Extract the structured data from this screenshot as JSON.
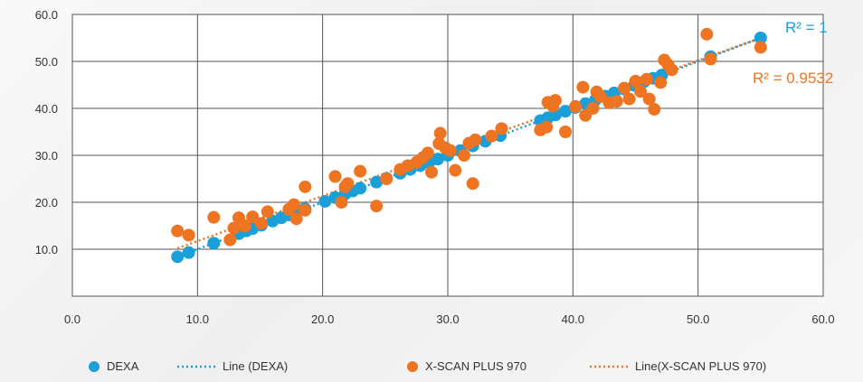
{
  "chart_data": {
    "type": "scatter",
    "title": "",
    "xlabel": "",
    "ylabel": "",
    "xlim": [
      0,
      60
    ],
    "ylim": [
      0,
      60
    ],
    "x_ticks": [
      "0.0",
      "10.0",
      "20.0",
      "30.0",
      "40.0",
      "50.0",
      "60.0"
    ],
    "y_ticks": [
      "10.0",
      "20.0",
      "30.0",
      "40.0",
      "50.0",
      "60.0"
    ],
    "grid": true,
    "legend_position": "bottom",
    "series": [
      {
        "name": "DEXA",
        "color": "#1a9fd9",
        "points": [
          [
            8.4,
            8.4
          ],
          [
            9.3,
            9.3
          ],
          [
            11.3,
            11.3
          ],
          [
            13.3,
            13.3
          ],
          [
            13.9,
            13.9
          ],
          [
            14.4,
            14.4
          ],
          [
            15.1,
            15.1
          ],
          [
            16.0,
            16.0
          ],
          [
            16.7,
            16.7
          ],
          [
            17.3,
            17.3
          ],
          [
            18.0,
            18.0
          ],
          [
            18.6,
            18.6
          ],
          [
            20.2,
            20.2
          ],
          [
            21.0,
            21.0
          ],
          [
            21.8,
            21.8
          ],
          [
            22.4,
            22.4
          ],
          [
            23.0,
            23.0
          ],
          [
            24.3,
            24.3
          ],
          [
            25.1,
            25.1
          ],
          [
            26.2,
            26.2
          ],
          [
            27.0,
            27.0
          ],
          [
            27.8,
            27.8
          ],
          [
            28.5,
            28.5
          ],
          [
            29.2,
            29.2
          ],
          [
            30.0,
            30.0
          ],
          [
            31.0,
            31.0
          ],
          [
            32.0,
            32.0
          ],
          [
            33.0,
            33.0
          ],
          [
            34.2,
            34.2
          ],
          [
            37.4,
            37.4
          ],
          [
            38.0,
            38.0
          ],
          [
            38.6,
            38.6
          ],
          [
            39.4,
            39.4
          ],
          [
            40.2,
            40.2
          ],
          [
            41.0,
            41.0
          ],
          [
            41.8,
            41.8
          ],
          [
            42.6,
            42.6
          ],
          [
            43.3,
            43.3
          ],
          [
            44.1,
            44.1
          ],
          [
            44.9,
            44.9
          ],
          [
            45.7,
            45.7
          ],
          [
            46.4,
            46.4
          ],
          [
            47.1,
            47.1
          ],
          [
            51.0,
            51.0
          ],
          [
            55.0,
            55.0
          ]
        ]
      },
      {
        "name": "X-SCAN PLUS 970",
        "color": "#ee7421",
        "points": [
          [
            8.4,
            13.9
          ],
          [
            9.3,
            13.0
          ],
          [
            11.3,
            16.8
          ],
          [
            12.6,
            12.0
          ],
          [
            12.9,
            14.5
          ],
          [
            13.3,
            16.7
          ],
          [
            13.8,
            15.0
          ],
          [
            14.4,
            16.9
          ],
          [
            15.1,
            15.5
          ],
          [
            15.6,
            18.0
          ],
          [
            17.3,
            18.5
          ],
          [
            17.7,
            19.5
          ],
          [
            17.9,
            16.5
          ],
          [
            18.6,
            18.3
          ],
          [
            18.6,
            23.3
          ],
          [
            21.0,
            25.5
          ],
          [
            21.5,
            20.0
          ],
          [
            21.8,
            23.3
          ],
          [
            22.0,
            24.0
          ],
          [
            23.0,
            26.6
          ],
          [
            24.3,
            19.2
          ],
          [
            25.1,
            25.0
          ],
          [
            26.2,
            27.0
          ],
          [
            26.8,
            27.8
          ],
          [
            27.5,
            28.5
          ],
          [
            28.0,
            29.5
          ],
          [
            28.4,
            30.5
          ],
          [
            28.7,
            26.4
          ],
          [
            29.3,
            32.5
          ],
          [
            29.4,
            34.7
          ],
          [
            29.8,
            31.6
          ],
          [
            30.2,
            31.0
          ],
          [
            30.6,
            26.8
          ],
          [
            31.3,
            30.0
          ],
          [
            31.7,
            32.6
          ],
          [
            32.0,
            24.0
          ],
          [
            32.2,
            33.3
          ],
          [
            33.5,
            34.1
          ],
          [
            34.3,
            35.7
          ],
          [
            37.4,
            35.4
          ],
          [
            37.9,
            36.0
          ],
          [
            38.0,
            41.3
          ],
          [
            38.4,
            40.5
          ],
          [
            38.6,
            41.7
          ],
          [
            39.4,
            35.0
          ],
          [
            40.2,
            40.4
          ],
          [
            40.8,
            44.5
          ],
          [
            41.0,
            38.5
          ],
          [
            41.6,
            40.0
          ],
          [
            41.9,
            43.5
          ],
          [
            42.2,
            42.5
          ],
          [
            42.9,
            41.2
          ],
          [
            43.5,
            41.5
          ],
          [
            44.1,
            44.3
          ],
          [
            44.5,
            42.0
          ],
          [
            45.0,
            45.8
          ],
          [
            45.4,
            43.6
          ],
          [
            45.9,
            46.2
          ],
          [
            46.1,
            42.0
          ],
          [
            46.5,
            39.8
          ],
          [
            47.0,
            45.5
          ],
          [
            47.3,
            50.3
          ],
          [
            47.6,
            49.3
          ],
          [
            47.9,
            48.2
          ],
          [
            50.7,
            55.8
          ],
          [
            51.0,
            50.5
          ],
          [
            55.0,
            53.0
          ]
        ]
      }
    ],
    "trendlines": [
      {
        "name": "Line (DEXA)",
        "color": "#1a9fd9",
        "x0": 8.4,
        "y0": 8.4,
        "x1": 55.0,
        "y1": 55.0,
        "r2_label": "R² = 1"
      },
      {
        "name": "Line(X-SCAN PLUS 970)",
        "color": "#ee7421",
        "x0": 8.4,
        "y0": 10.2,
        "x1": 55.0,
        "y1": 55.0,
        "r2_label": "R² = 0.9532"
      }
    ],
    "legend": [
      "DEXA",
      "Line (DEXA)",
      "X-SCAN PLUS 970",
      "Line(X-SCAN PLUS 970)"
    ]
  }
}
